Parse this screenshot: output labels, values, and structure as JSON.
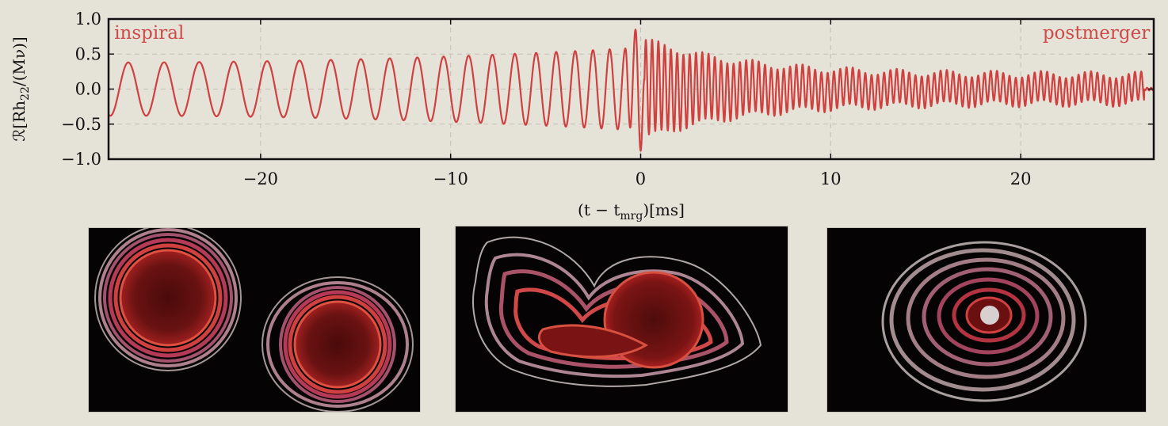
{
  "chart_data": {
    "type": "line",
    "title": "",
    "xlabel_parts": {
      "open": "(t − t",
      "sub": "mrg",
      "close": ")[ms]"
    },
    "ylabel_parts": {
      "pre": "ℛ[Rh",
      "sub": "22",
      "post": "/(Mν)]"
    },
    "xlim": [
      -28,
      27
    ],
    "ylim": [
      -1.0,
      1.0
    ],
    "xticks": [
      {
        "value": -20,
        "label": "−20"
      },
      {
        "value": -10,
        "label": "−10"
      },
      {
        "value": 0,
        "label": "0"
      },
      {
        "value": 10,
        "label": "10"
      },
      {
        "value": 20,
        "label": "20"
      }
    ],
    "yticks": [
      {
        "value": 1.0,
        "label": "1.0"
      },
      {
        "value": 0.5,
        "label": "0.5"
      },
      {
        "value": 0.0,
        "label": "0.0"
      },
      {
        "value": -0.5,
        "label": "−0.5"
      },
      {
        "value": -1.0,
        "label": "−1.0"
      }
    ],
    "grid": true,
    "line_color": "#cf4040",
    "annotations": [
      {
        "text": "inspiral",
        "x": -27.7,
        "y": 0.72,
        "anchor": "start"
      },
      {
        "text": "postmerger",
        "x": 26.8,
        "y": 0.72,
        "anchor": "end"
      }
    ],
    "series": [
      {
        "phases": [
          {
            "segment": "inspiral",
            "x_start": -28.0,
            "x_end": -0.8,
            "peak_amplitude": [
              0.38,
              0.58
            ],
            "period_ms": [
              1.9,
              0.8
            ]
          },
          {
            "segment": "merger",
            "x_start": -0.8,
            "x_end": 0.2,
            "peak_amplitude": [
              0.85,
              -0.88
            ]
          },
          {
            "segment": "postmerger",
            "x_start": 0.2,
            "x_end": 26.5,
            "peak_amplitude": [
              0.7,
              0.2
            ],
            "period_ms": [
              0.33,
              0.33
            ]
          }
        ]
      }
    ]
  },
  "snapshots": [
    {
      "name": "inspiral-snapshot",
      "stage": "inspiral"
    },
    {
      "name": "merger-snapshot",
      "stage": "merger"
    },
    {
      "name": "postmerger-snapshot",
      "stage": "postmerger"
    }
  ],
  "colors": {
    "background": "#e5e2d8",
    "panel": "#050303",
    "matter_core": "#5e1010",
    "matter_edge": "#f0dcdc"
  }
}
